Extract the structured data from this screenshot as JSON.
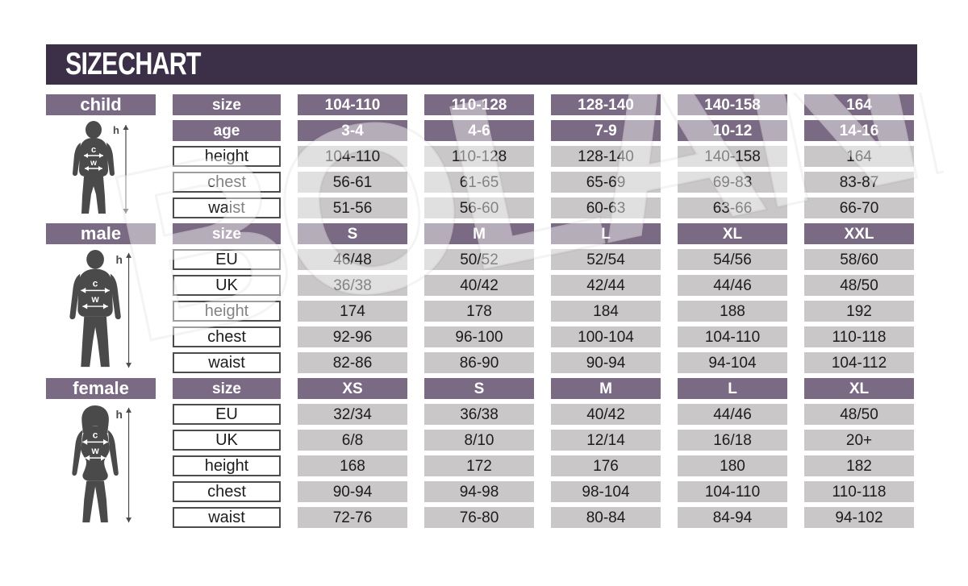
{
  "chart_data": {
    "type": "table",
    "title": "SIZE CHART",
    "sections": [
      {
        "id": "child",
        "label": "child",
        "rows": [
          {
            "label": "size",
            "style": "header",
            "values": [
              "104-110",
              "110-128",
              "128-140",
              "140-158",
              "164"
            ]
          },
          {
            "label": "age",
            "style": "header",
            "values": [
              "3-4",
              "4-6",
              "7-9",
              "10-12",
              "14-16"
            ]
          },
          {
            "label": "height",
            "style": "data",
            "values": [
              "104-110",
              "110-128",
              "128-140",
              "140-158",
              "164"
            ]
          },
          {
            "label": "chest",
            "style": "data",
            "values": [
              "56-61",
              "61-65",
              "65-69",
              "69-83",
              "83-87"
            ]
          },
          {
            "label": "waist",
            "style": "data",
            "values": [
              "51-56",
              "56-60",
              "60-63",
              "63-66",
              "66-70"
            ]
          }
        ]
      },
      {
        "id": "male",
        "label": "male",
        "rows": [
          {
            "label": "size",
            "style": "header",
            "values": [
              "S",
              "M",
              "L",
              "XL",
              "XXL"
            ]
          },
          {
            "label": "EU",
            "style": "data",
            "values": [
              "46/48",
              "50/52",
              "52/54",
              "54/56",
              "58/60"
            ]
          },
          {
            "label": "UK",
            "style": "data",
            "values": [
              "36/38",
              "40/42",
              "42/44",
              "44/46",
              "48/50"
            ]
          },
          {
            "label": "height",
            "style": "data",
            "values": [
              "174",
              "178",
              "184",
              "188",
              "192"
            ]
          },
          {
            "label": "chest",
            "style": "data",
            "values": [
              "92-96",
              "96-100",
              "100-104",
              "104-110",
              "110-118"
            ]
          },
          {
            "label": "waist",
            "style": "data",
            "values": [
              "82-86",
              "86-90",
              "90-94",
              "94-104",
              "104-112"
            ]
          }
        ]
      },
      {
        "id": "female",
        "label": "female",
        "rows": [
          {
            "label": "size",
            "style": "header",
            "values": [
              "XS",
              "S",
              "M",
              "L",
              "XL"
            ]
          },
          {
            "label": "EU",
            "style": "data",
            "values": [
              "32/34",
              "36/38",
              "40/42",
              "44/46",
              "48/50"
            ]
          },
          {
            "label": "UK",
            "style": "data",
            "values": [
              "6/8",
              "8/10",
              "12/14",
              "16/18",
              "20+"
            ]
          },
          {
            "label": "height",
            "style": "data",
            "values": [
              "168",
              "172",
              "176",
              "180",
              "182"
            ]
          },
          {
            "label": "chest",
            "style": "data",
            "values": [
              "90-94",
              "94-98",
              "98-104",
              "104-110",
              "110-118"
            ]
          },
          {
            "label": "waist",
            "style": "data",
            "values": [
              "72-76",
              "76-80",
              "80-84",
              "84-94",
              "94-102"
            ]
          }
        ]
      }
    ]
  },
  "figure_annotations": {
    "height": "h",
    "chest": "c",
    "waist": "w"
  },
  "watermark": {
    "text": "BOLAND"
  },
  "colors": {
    "title_bar": "#3c3048",
    "header_cell": "#7b6a83",
    "data_cell": "#c9c7c8",
    "label_border": "#4e4b50",
    "silhouette": "#4a4a4a",
    "text_light": "#ffffff",
    "text_dark": "#1c1c1c"
  }
}
